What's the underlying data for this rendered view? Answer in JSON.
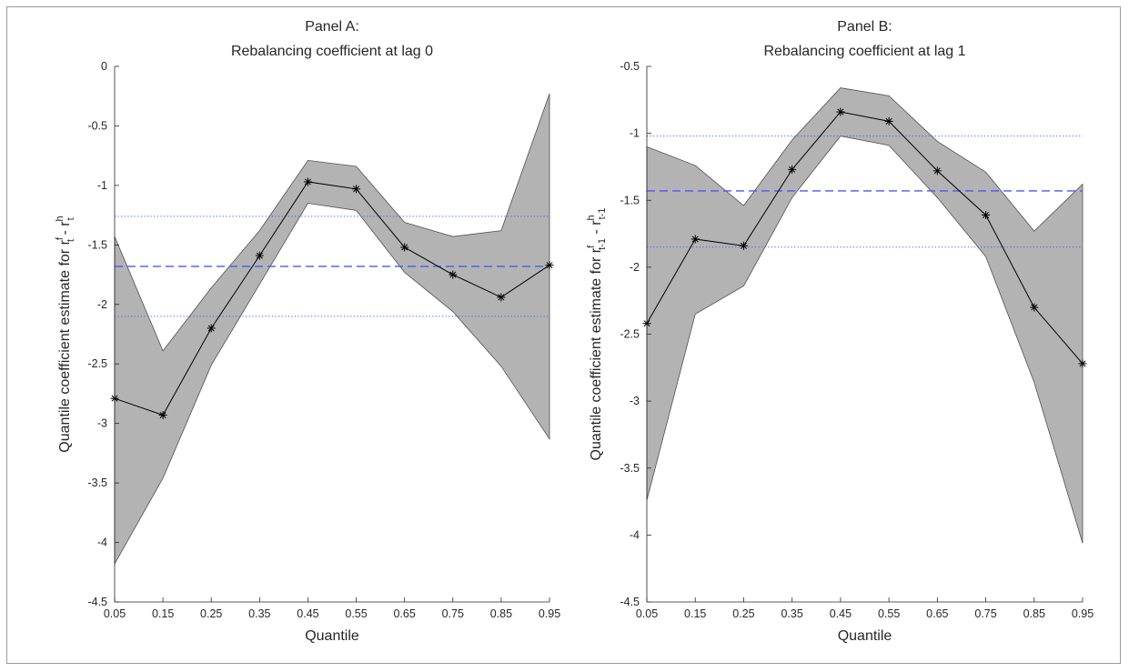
{
  "chart_data": [
    {
      "type": "line",
      "title": [
        "Panel A:",
        "Rebalancing coefficient at lag 0"
      ],
      "xlabel": "Quantile",
      "ylabel": {
        "prefix": "Quantile coefficient estimate for r",
        "sub1": "t",
        "sup1": "f",
        "mid": " - r",
        "sub2": "t",
        "sup2": "h"
      },
      "xlim": [
        0.05,
        0.95
      ],
      "ylim": [
        -4.5,
        0
      ],
      "xticks": [
        "0.05",
        "0.15",
        "0.25",
        "0.35",
        "0.45",
        "0.55",
        "0.65",
        "0.75",
        "0.85",
        "0.95"
      ],
      "yticks": [
        "0",
        "-0.5",
        "-1",
        "-1.5",
        "-2",
        "-2.5",
        "-3",
        "-3.5",
        "-4",
        "-4.5"
      ],
      "x": [
        0.05,
        0.15,
        0.25,
        0.35,
        0.45,
        0.55,
        0.65,
        0.75,
        0.85,
        0.95
      ],
      "estimate": [
        -2.79,
        -2.93,
        -2.2,
        -1.59,
        -0.97,
        -1.03,
        -1.52,
        -1.75,
        -1.94,
        -1.67
      ],
      "upper": [
        -1.43,
        -2.39,
        -1.86,
        -1.38,
        -0.79,
        -0.84,
        -1.31,
        -1.43,
        -1.38,
        -0.23
      ],
      "lower": [
        -4.18,
        -3.46,
        -2.51,
        -1.83,
        -1.15,
        -1.21,
        -1.73,
        -2.06,
        -2.52,
        -3.13
      ],
      "ols_estimate": -1.68,
      "ols_ci": [
        -2.1,
        -1.26
      ],
      "colors": {
        "band": "#b3b3b3",
        "line": "#000000",
        "ols": "#4a55ff"
      }
    },
    {
      "type": "line",
      "title": [
        "Panel B:",
        "Rebalancing coefficient at lag 1"
      ],
      "xlabel": "Quantile",
      "ylabel": {
        "prefix": "Quantile coefficient estimate for r",
        "sub1": "t-1",
        "sup1": "f",
        "mid": " - r",
        "sub2": "t-1",
        "sup2": "h"
      },
      "xlim": [
        0.05,
        0.95
      ],
      "ylim": [
        -4.5,
        -0.5
      ],
      "xticks": [
        "0.05",
        "0.15",
        "0.25",
        "0.35",
        "0.45",
        "0.55",
        "0.65",
        "0.75",
        "0.85",
        "0.95"
      ],
      "yticks": [
        "-0.5",
        "-1",
        "-1.5",
        "-2",
        "-2.5",
        "-3",
        "-3.5",
        "-4",
        "-4.5"
      ],
      "x": [
        0.05,
        0.15,
        0.25,
        0.35,
        0.45,
        0.55,
        0.65,
        0.75,
        0.85,
        0.95
      ],
      "estimate": [
        -2.42,
        -1.79,
        -1.84,
        -1.27,
        -0.84,
        -0.91,
        -1.28,
        -1.61,
        -2.3,
        -2.72
      ],
      "upper": [
        -1.1,
        -1.24,
        -1.54,
        -1.05,
        -0.66,
        -0.72,
        -1.06,
        -1.29,
        -1.73,
        -1.38
      ],
      "lower": [
        -3.74,
        -2.35,
        -2.14,
        -1.48,
        -1.02,
        -1.09,
        -1.48,
        -1.92,
        -2.86,
        -4.06
      ],
      "ols_estimate": -1.43,
      "ols_ci": [
        -1.85,
        -1.02
      ],
      "colors": {
        "band": "#b3b3b3",
        "line": "#000000",
        "ols": "#4a55ff"
      }
    }
  ]
}
